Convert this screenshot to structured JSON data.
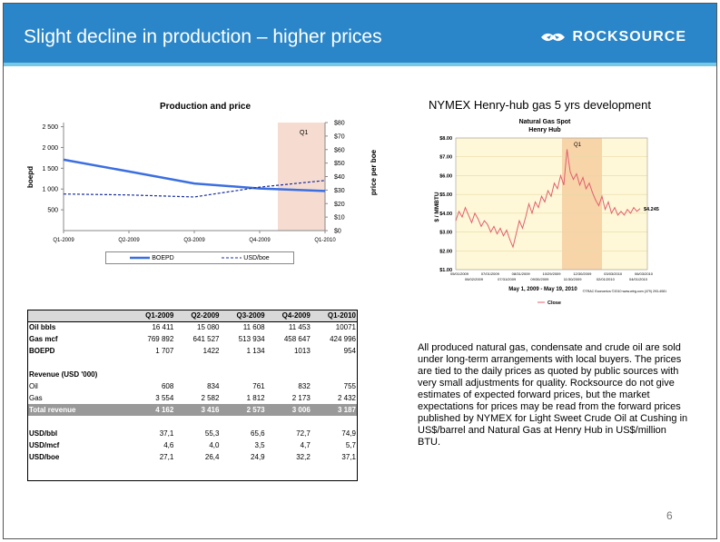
{
  "header": {
    "title": "Slight decline in production – higher prices",
    "logo_text": "ROCKSOURCE",
    "bg_color": "#2a86c8",
    "accent_color": "#75c9e6"
  },
  "left_chart": {
    "title": "Production and price",
    "y_left_label": "boepd",
    "y_right_label": "price per boe",
    "q1_label": "Q1",
    "legend": [
      "BOEPD",
      "USD/boe"
    ]
  },
  "right_chart": {
    "title": "NYMEX Henry-hub gas 5 yrs development",
    "inner_title": "Natural Gas Spot",
    "inner_subtitle": "Henry Hub",
    "y_label": "$ / MMBTU",
    "q1_label": "Q1",
    "last_value_label": "$4.245",
    "date_range": "May 1, 2009 - May 19, 2010",
    "legend": "Close",
    "source": "©TRAC Economics ©2010 www.wtrg.com (479) 293-4081"
  },
  "table": {
    "columns": [
      "Q1-2009",
      "Q2-2009",
      "Q3-2009",
      "Q4-2009",
      "Q1-2010"
    ],
    "production_rows": [
      {
        "label": "Oil bbls",
        "values": [
          "16 411",
          "15 080",
          "11 608",
          "11 453",
          "10071"
        ]
      },
      {
        "label": "Gas mcf",
        "values": [
          "769 892",
          "641 527",
          "513 934",
          "458 647",
          "424 996"
        ]
      },
      {
        "label": "BOEPD",
        "values": [
          "1 707",
          "1422",
          "1 134",
          "1013",
          "954"
        ]
      }
    ],
    "revenue_header": "Revenue (USD '000)",
    "revenue_rows": [
      {
        "label": "Oil",
        "values": [
          "608",
          "834",
          "761",
          "832",
          "755"
        ]
      },
      {
        "label": "Gas",
        "values": [
          "3 554",
          "2 582",
          "1 812",
          "2 173",
          "2 432"
        ]
      }
    ],
    "total_row": {
      "label": "Total revenue",
      "values": [
        "4 162",
        "3 416",
        "2 573",
        "3 006",
        "3 187"
      ]
    },
    "price_rows": [
      {
        "label": "USD/bbl",
        "values": [
          "37,1",
          "55,3",
          "65,6",
          "72,7",
          "74,9"
        ]
      },
      {
        "label": "USD/mcf",
        "values": [
          "4,6",
          "4,0",
          "3,5",
          "4,7",
          "5,7"
        ]
      },
      {
        "label": "USD/boe",
        "values": [
          "27,1",
          "26,4",
          "24,9",
          "32,2",
          "37,1"
        ]
      }
    ]
  },
  "paragraph": "All produced natural gas, condensate and crude oil are sold under long-term arrangements with local buyers. The prices are tied to the daily prices as quoted by public sources with very small adjustments for quality. Rocksource do not give estimates of expected forward prices, but the market expectations for prices may be read from the forward prices published by NYMEX for Light Sweet Crude Oil at Cushing in US$/barrel and Natural Gas at Henry Hub in US$/million BTU.",
  "page_number": "6",
  "chart_data": [
    {
      "type": "line",
      "title": "Production and price",
      "categories": [
        "Q1-2009",
        "Q2-2009",
        "Q3-2009",
        "Q4-2009",
        "Q1-2010"
      ],
      "ylabel": "boepd",
      "y2label": "price per boe",
      "ylim": [
        0,
        2500
      ],
      "y2lim": [
        0,
        80
      ],
      "yticks": [
        "2 500",
        "2 000",
        "1 500",
        "1 000",
        "500",
        ""
      ],
      "y2ticks": [
        "$80",
        "$70",
        "$60",
        "$50",
        "$40",
        "$30",
        "$20",
        "$10",
        "$0"
      ],
      "series": [
        {
          "name": "BOEPD",
          "axis": "left",
          "color": "#3b6fe0",
          "style": "solid",
          "values": [
            1707,
            1422,
            1134,
            1013,
            954
          ]
        },
        {
          "name": "USD/boe",
          "axis": "right",
          "color": "#1a2fa0",
          "style": "dashed",
          "values": [
            27.1,
            26.4,
            24.9,
            32.2,
            37.1
          ]
        }
      ],
      "legend": "bottom"
    },
    {
      "type": "line",
      "title": "Natural Gas Spot Henry Hub",
      "ylabel": "$ / MMBTU",
      "ylim": [
        1,
        8
      ],
      "yticks": [
        "$8.00",
        "$7.00",
        "$6.00",
        "$5.00",
        "$4.00",
        "$3.00",
        "$2.00",
        "$1.00"
      ],
      "xticks_top": [
        "05/01/2009",
        "07/01/2009",
        "08/31/2009",
        "10/29/2009",
        "12/30/2009",
        "03/03/2010",
        "06/03/2010"
      ],
      "xticks_bottom": [
        "06/02/2009",
        "07/31/2009",
        "09/30/2009",
        "11/30/2009",
        "02/01/2010",
        "04/01/2010"
      ],
      "series": [
        {
          "name": "Close",
          "color": "#e0606e",
          "values": [
            3.6,
            4.1,
            3.8,
            4.3,
            3.9,
            3.5,
            4.0,
            3.7,
            3.3,
            3.6,
            3.4,
            3.0,
            3.3,
            2.9,
            3.2,
            2.8,
            3.1,
            2.6,
            2.2,
            2.9,
            3.6,
            3.2,
            3.8,
            4.5,
            4.0,
            4.6,
            4.3,
            4.9,
            4.6,
            5.2,
            4.9,
            5.6,
            5.3,
            6.0,
            5.5,
            7.4,
            6.2,
            5.8,
            6.1,
            5.5,
            5.9,
            5.3,
            5.6,
            5.1,
            4.7,
            4.4,
            4.9,
            4.2,
            4.6,
            4.0,
            4.3,
            3.9,
            4.1,
            3.9,
            4.2,
            4.0,
            4.3,
            4.1,
            4.245
          ]
        }
      ],
      "legend": "bottom"
    }
  ]
}
